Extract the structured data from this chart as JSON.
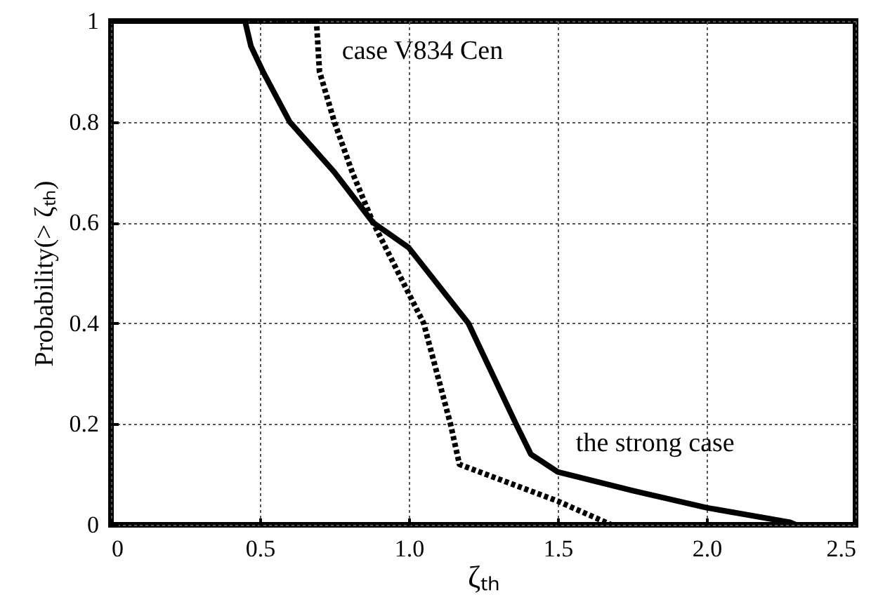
{
  "chart_data": {
    "type": "line",
    "xlabel": "ζₜₕ",
    "ylabel": "Probability(> ζₜₕ)",
    "xlim": [
      0,
      2.5
    ],
    "ylim": [
      0,
      1
    ],
    "xticks": [
      0,
      0.5,
      {
        "value": 1,
        "label": "1.0"
      },
      {
        "value": 1.5,
        "label": "1.5"
      },
      {
        "value": 2,
        "label": "2.0"
      },
      {
        "value": 2.5,
        "label": "2.5"
      }
    ],
    "yticks": [
      0,
      0.2,
      0.4,
      0.6,
      0.8,
      1
    ],
    "grid": true,
    "marker": "none",
    "series": [
      {
        "name": "the strong case",
        "color": "#000000",
        "line_style": "solid",
        "x": [
          0,
          0.45,
          0.47,
          0.51,
          0.6,
          0.75,
          0.88,
          1.0,
          1.2,
          1.36,
          1.41,
          1.5,
          1.75,
          2.0,
          2.28,
          2.3
        ],
        "values": [
          1,
          1,
          0.95,
          0.9,
          0.8,
          0.7,
          0.6,
          0.55,
          0.4,
          0.2,
          0.14,
          0.105,
          0.068,
          0.034,
          0.005,
          0
        ]
      },
      {
        "name": "case V834 Cen",
        "color": "#000000",
        "line_style": "dotted",
        "x": [
          0,
          0.69,
          0.7,
          0.75,
          0.81,
          0.88,
          1.05,
          1.14,
          1.17,
          1.5,
          1.68
        ],
        "values": [
          1,
          1,
          0.9,
          0.8,
          0.7,
          0.6,
          0.4,
          0.2,
          0.12,
          0.047,
          0
        ]
      }
    ]
  }
}
